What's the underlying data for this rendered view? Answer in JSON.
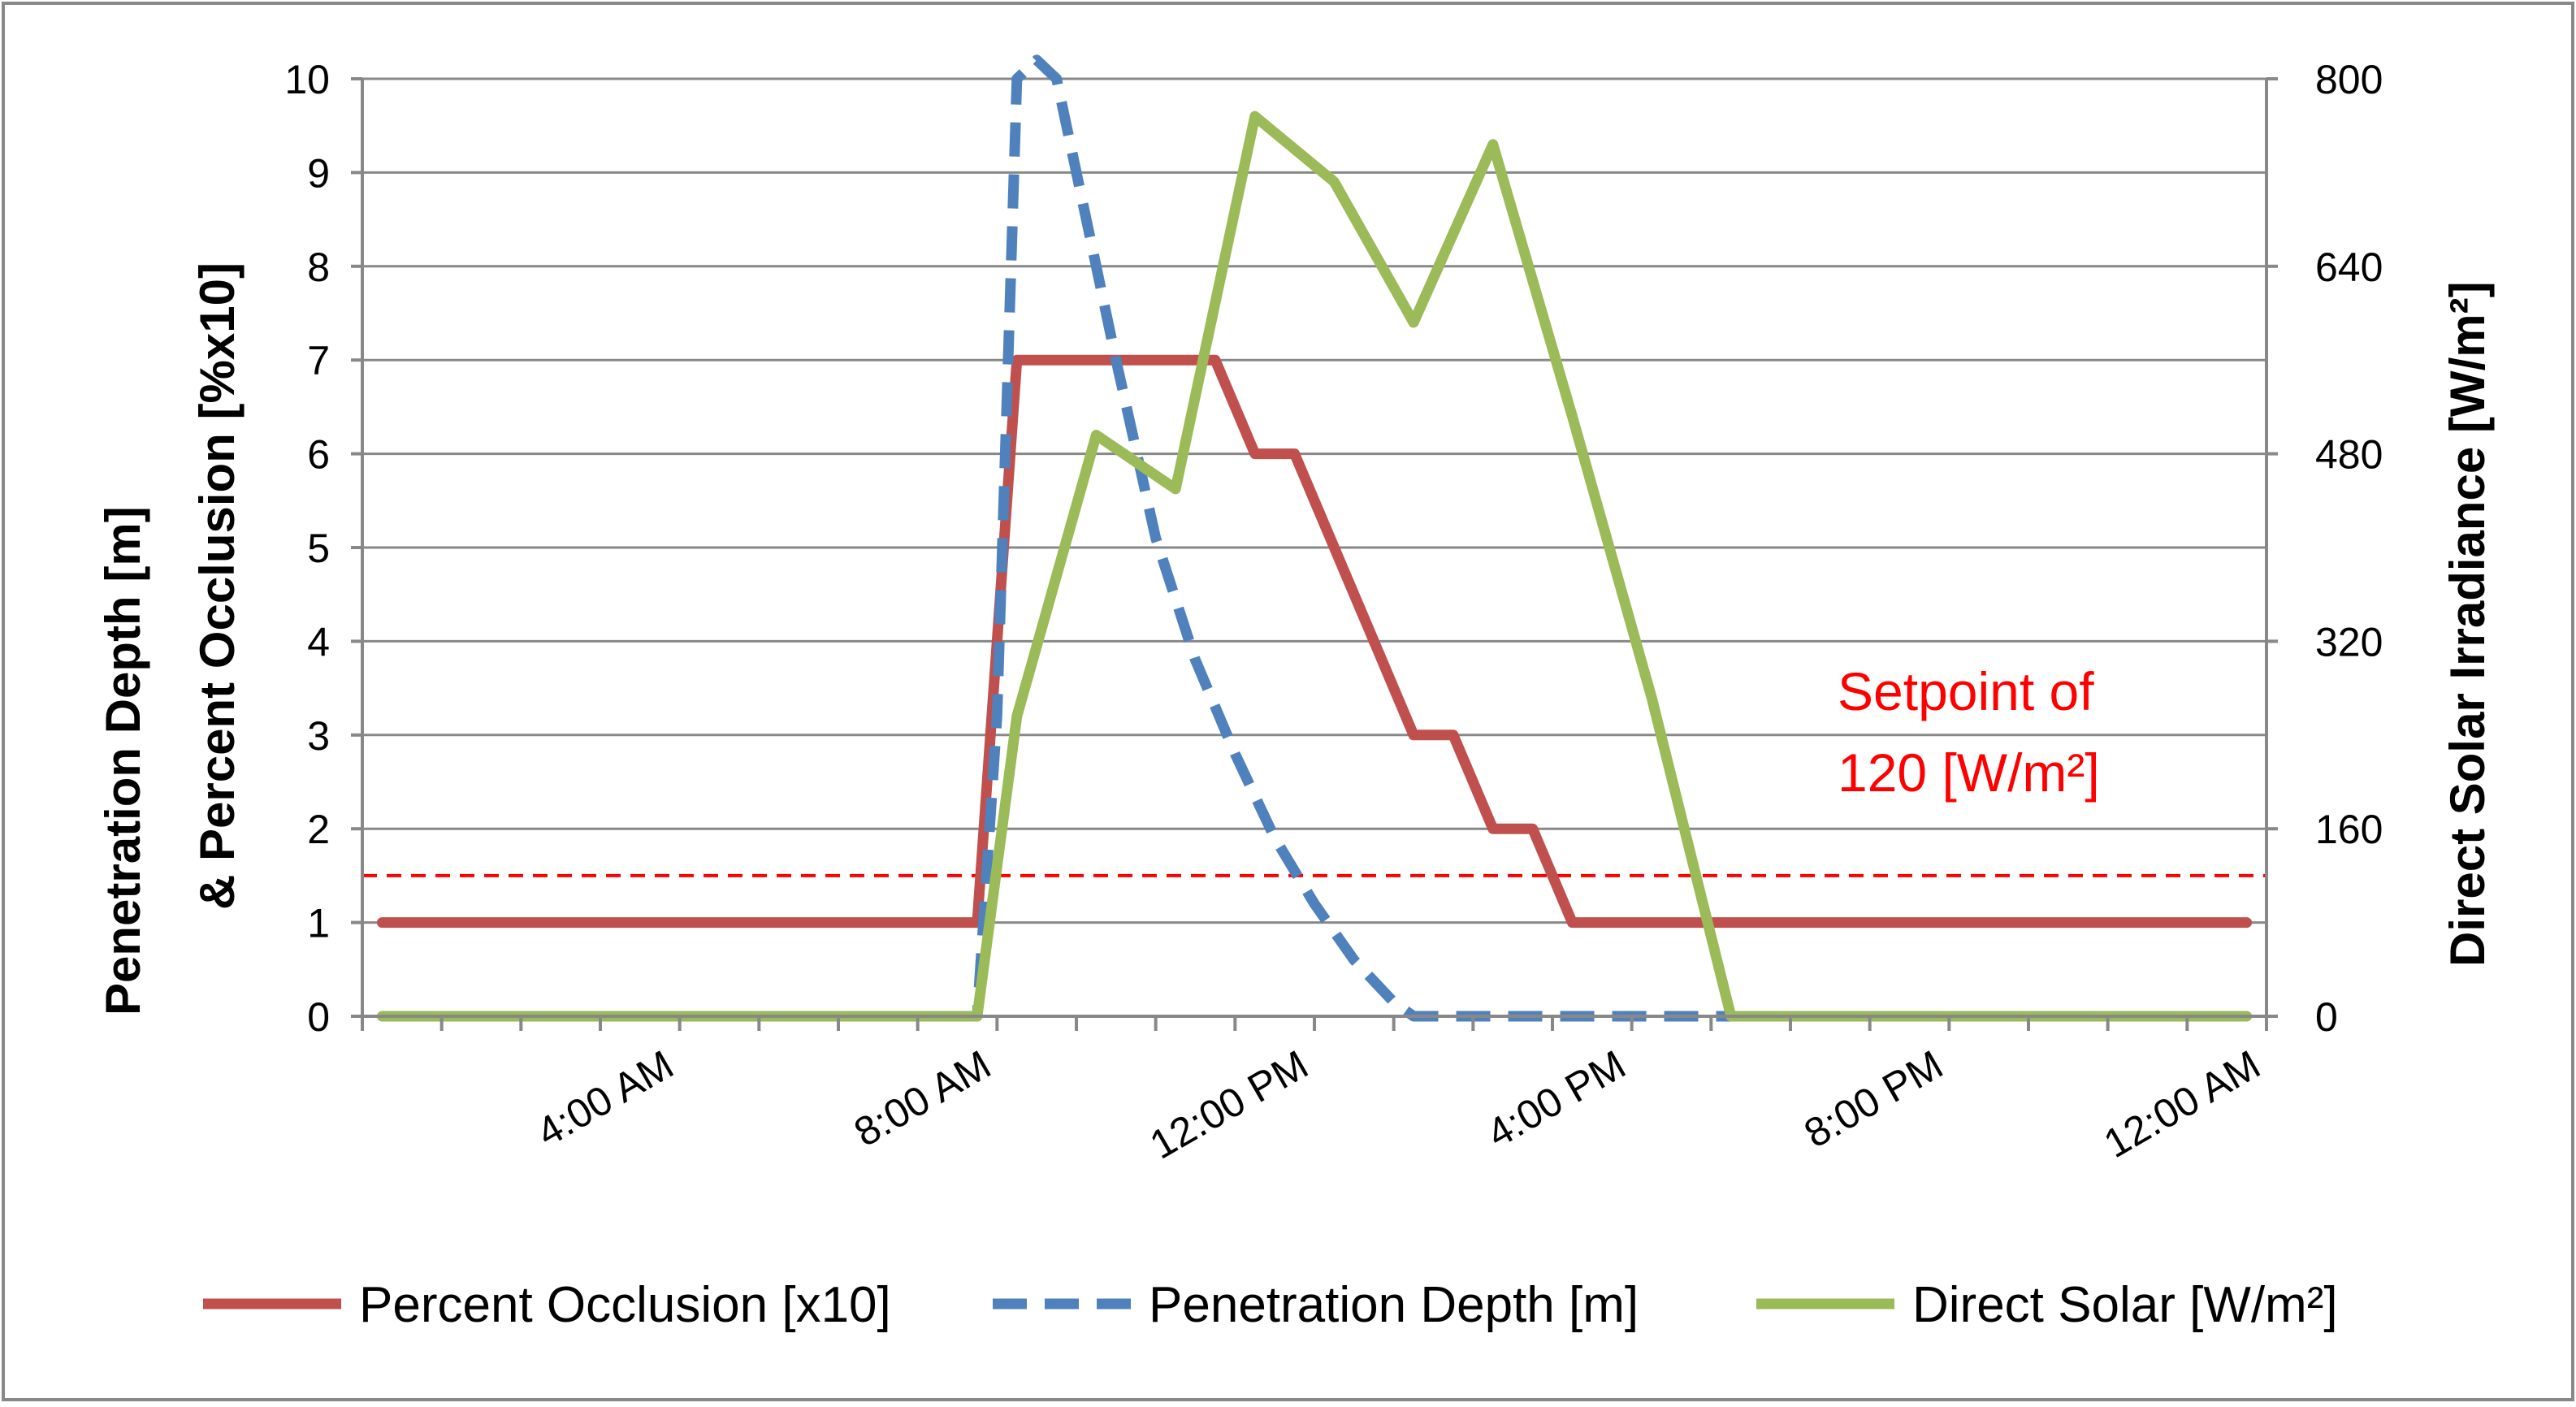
{
  "chart_data": {
    "type": "line",
    "title": "",
    "y_left_label_line1": "Penetration Depth [m]",
    "y_left_label_line2": "& Percent Occlusion [%x10]",
    "y_right_label": "Direct Solar Irradiance [W/m²]",
    "x_ticks": [
      {
        "hour": 4,
        "label": "4:00 AM"
      },
      {
        "hour": 8,
        "label": "8:00 AM"
      },
      {
        "hour": 12,
        "label": "12:00 PM"
      },
      {
        "hour": 16,
        "label": "4:00 PM"
      },
      {
        "hour": 20,
        "label": "8:00 PM"
      },
      {
        "hour": 24,
        "label": "12:00 AM"
      }
    ],
    "x_range": [
      0,
      24
    ],
    "y_left_range": [
      0,
      10
    ],
    "y_left_ticks": [
      {
        "value": 0,
        "label": "0"
      },
      {
        "value": 1,
        "label": "1"
      },
      {
        "value": 2,
        "label": "2"
      },
      {
        "value": 3,
        "label": "3"
      },
      {
        "value": 4,
        "label": "4"
      },
      {
        "value": 5,
        "label": "5"
      },
      {
        "value": 6,
        "label": "6"
      },
      {
        "value": 7,
        "label": "7"
      },
      {
        "value": 8,
        "label": "8"
      },
      {
        "value": 9,
        "label": "9"
      },
      {
        "value": 10,
        "label": "10"
      }
    ],
    "y_right_range": [
      0,
      800
    ],
    "y_right_ticks": [
      {
        "value": 0,
        "label": "0"
      },
      {
        "value": 160,
        "label": "160"
      },
      {
        "value": 320,
        "label": "320"
      },
      {
        "value": 480,
        "label": "480"
      },
      {
        "value": 640,
        "label": "640"
      },
      {
        "value": 800,
        "label": "800"
      }
    ],
    "grid": true,
    "setpoint": {
      "value": 120,
      "axis": "right",
      "color": "#ff0000",
      "label_line1": "Setpoint of",
      "label_line2": "120 [W/m²]"
    },
    "series": [
      {
        "name": "Percent Occlusion [x10]",
        "axis": "left",
        "color": "#c0504d",
        "dash": "solid",
        "points": [
          [
            0.25,
            1
          ],
          [
            7.75,
            1
          ],
          [
            8.25,
            7
          ],
          [
            10.75,
            7
          ],
          [
            11.25,
            6
          ],
          [
            11.75,
            6
          ],
          [
            12.25,
            5
          ],
          [
            12.75,
            4
          ],
          [
            13.25,
            3
          ],
          [
            13.75,
            3
          ],
          [
            14.25,
            2
          ],
          [
            14.75,
            2
          ],
          [
            15.25,
            1
          ],
          [
            23.75,
            1
          ]
        ]
      },
      {
        "name": "Penetration Depth [m]",
        "axis": "left",
        "color": "#4f81bd",
        "dash": "dashed",
        "points": [
          [
            0.25,
            0
          ],
          [
            7.75,
            0
          ],
          [
            8.0,
            3.2
          ],
          [
            8.25,
            10
          ],
          [
            8.5,
            10.2
          ],
          [
            8.75,
            10
          ],
          [
            9.0,
            9.0
          ],
          [
            9.5,
            7.0
          ],
          [
            10.0,
            5.1
          ],
          [
            10.5,
            3.8
          ],
          [
            11.0,
            2.8
          ],
          [
            11.5,
            1.9
          ],
          [
            12.0,
            1.2
          ],
          [
            12.5,
            0.6
          ],
          [
            13.0,
            0.15
          ],
          [
            13.25,
            0
          ],
          [
            17.5,
            0
          ]
        ]
      },
      {
        "name": "Direct Solar [W/m²]",
        "axis": "right",
        "color": "#9bbb59",
        "dash": "solid",
        "points": [
          [
            0.25,
            0
          ],
          [
            7.75,
            0
          ],
          [
            8.25,
            256
          ],
          [
            9.25,
            496
          ],
          [
            10.25,
            450
          ],
          [
            11.25,
            768
          ],
          [
            12.25,
            712
          ],
          [
            13.25,
            592
          ],
          [
            14.25,
            744
          ],
          [
            15.25,
            512
          ],
          [
            16.25,
            272
          ],
          [
            17.25,
            0
          ],
          [
            23.75,
            0
          ]
        ]
      }
    ]
  }
}
